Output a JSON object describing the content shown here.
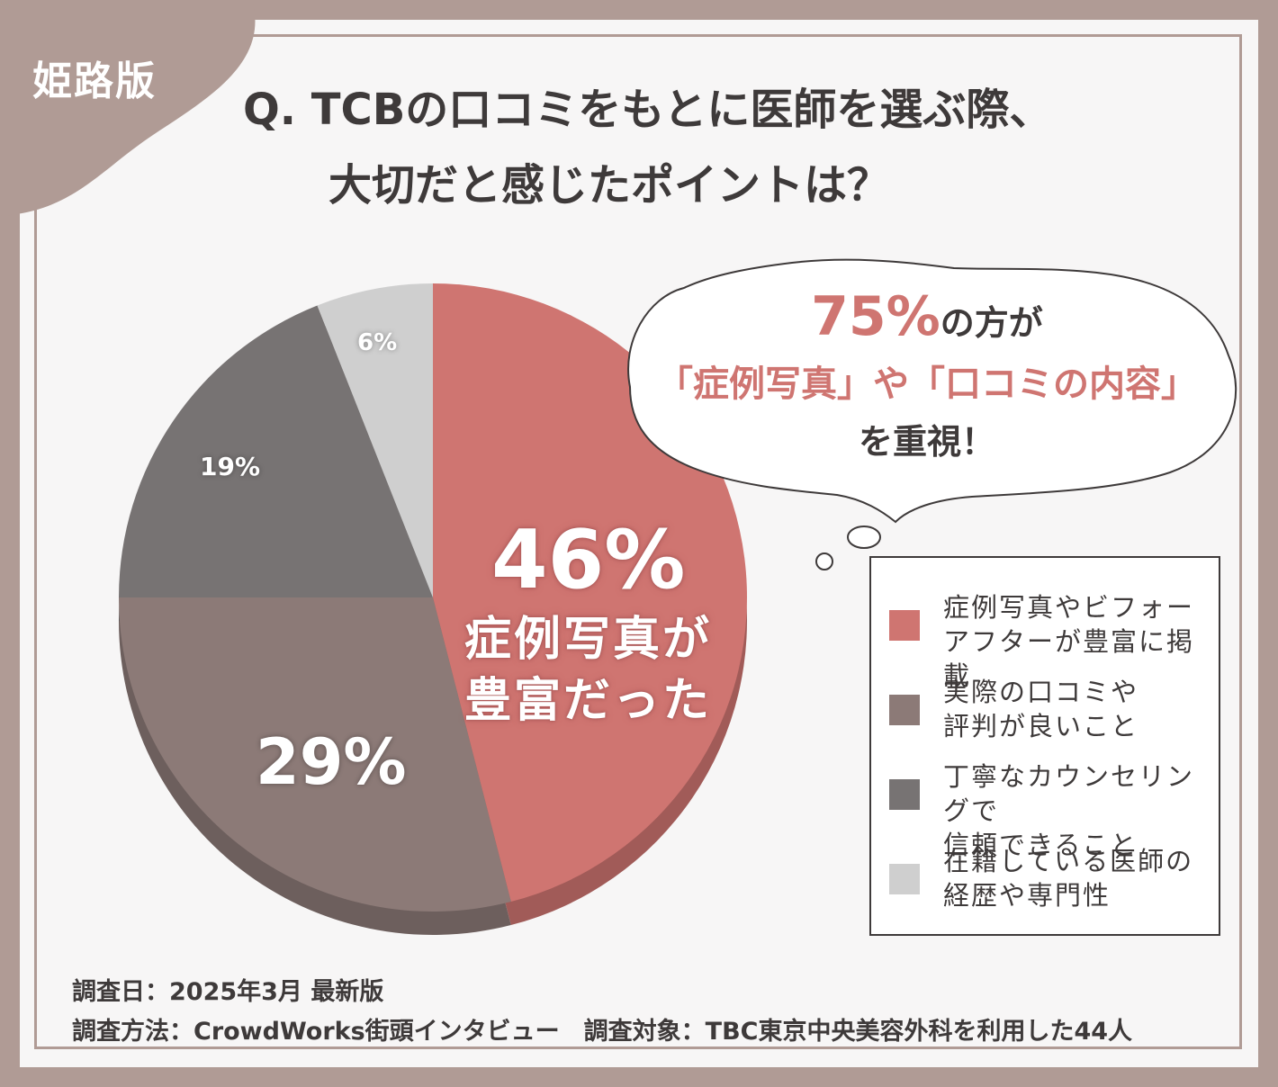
{
  "badge": "姫路版",
  "question": {
    "line1": "Q. TCBの口コミをもとに医師を選ぶ際、",
    "line2": "大切だと感じたポイントは？"
  },
  "bubble": {
    "pct": "75%",
    "text1": "の方が",
    "text2": "「症例写真」や「口コミの内容」",
    "text3": "を重視！"
  },
  "chart_data": {
    "type": "pie",
    "slices": [
      {
        "name": "症例写真やビフォーアフターが豊富に掲載",
        "value": 46,
        "color": "#cf7571"
      },
      {
        "name": "実際の口コミや評判が良いこと",
        "value": 29,
        "color": "#8c7a77"
      },
      {
        "name": "丁寧なカウンセリングで信頼できること",
        "value": 19,
        "color": "#777373"
      },
      {
        "name": "在籍している医師の経歴や専門性",
        "value": 6,
        "color": "#cfcfcf"
      }
    ],
    "labels": {
      "s46": "46%",
      "s46_caption1": "症例写真が",
      "s46_caption2": "豊富だった",
      "s29": "29%",
      "s19": "19%",
      "s6": "6%"
    }
  },
  "legend": [
    {
      "line1": "症例写真やビフォー",
      "line2": "アフターが豊富に掲載"
    },
    {
      "line1": "実際の口コミや",
      "line2": "評判が良いこと"
    },
    {
      "line1": "丁寧なカウンセリングで",
      "line2": "信頼できること"
    },
    {
      "line1": "在籍している医師の",
      "line2": "経歴や専門性"
    }
  ],
  "footer": {
    "date": "調査日：2025年3月 最新版",
    "method": "調査方法：CrowdWorks街頭インタビュー　調査対象：TBC東京中央美容外科を利用した44人"
  }
}
